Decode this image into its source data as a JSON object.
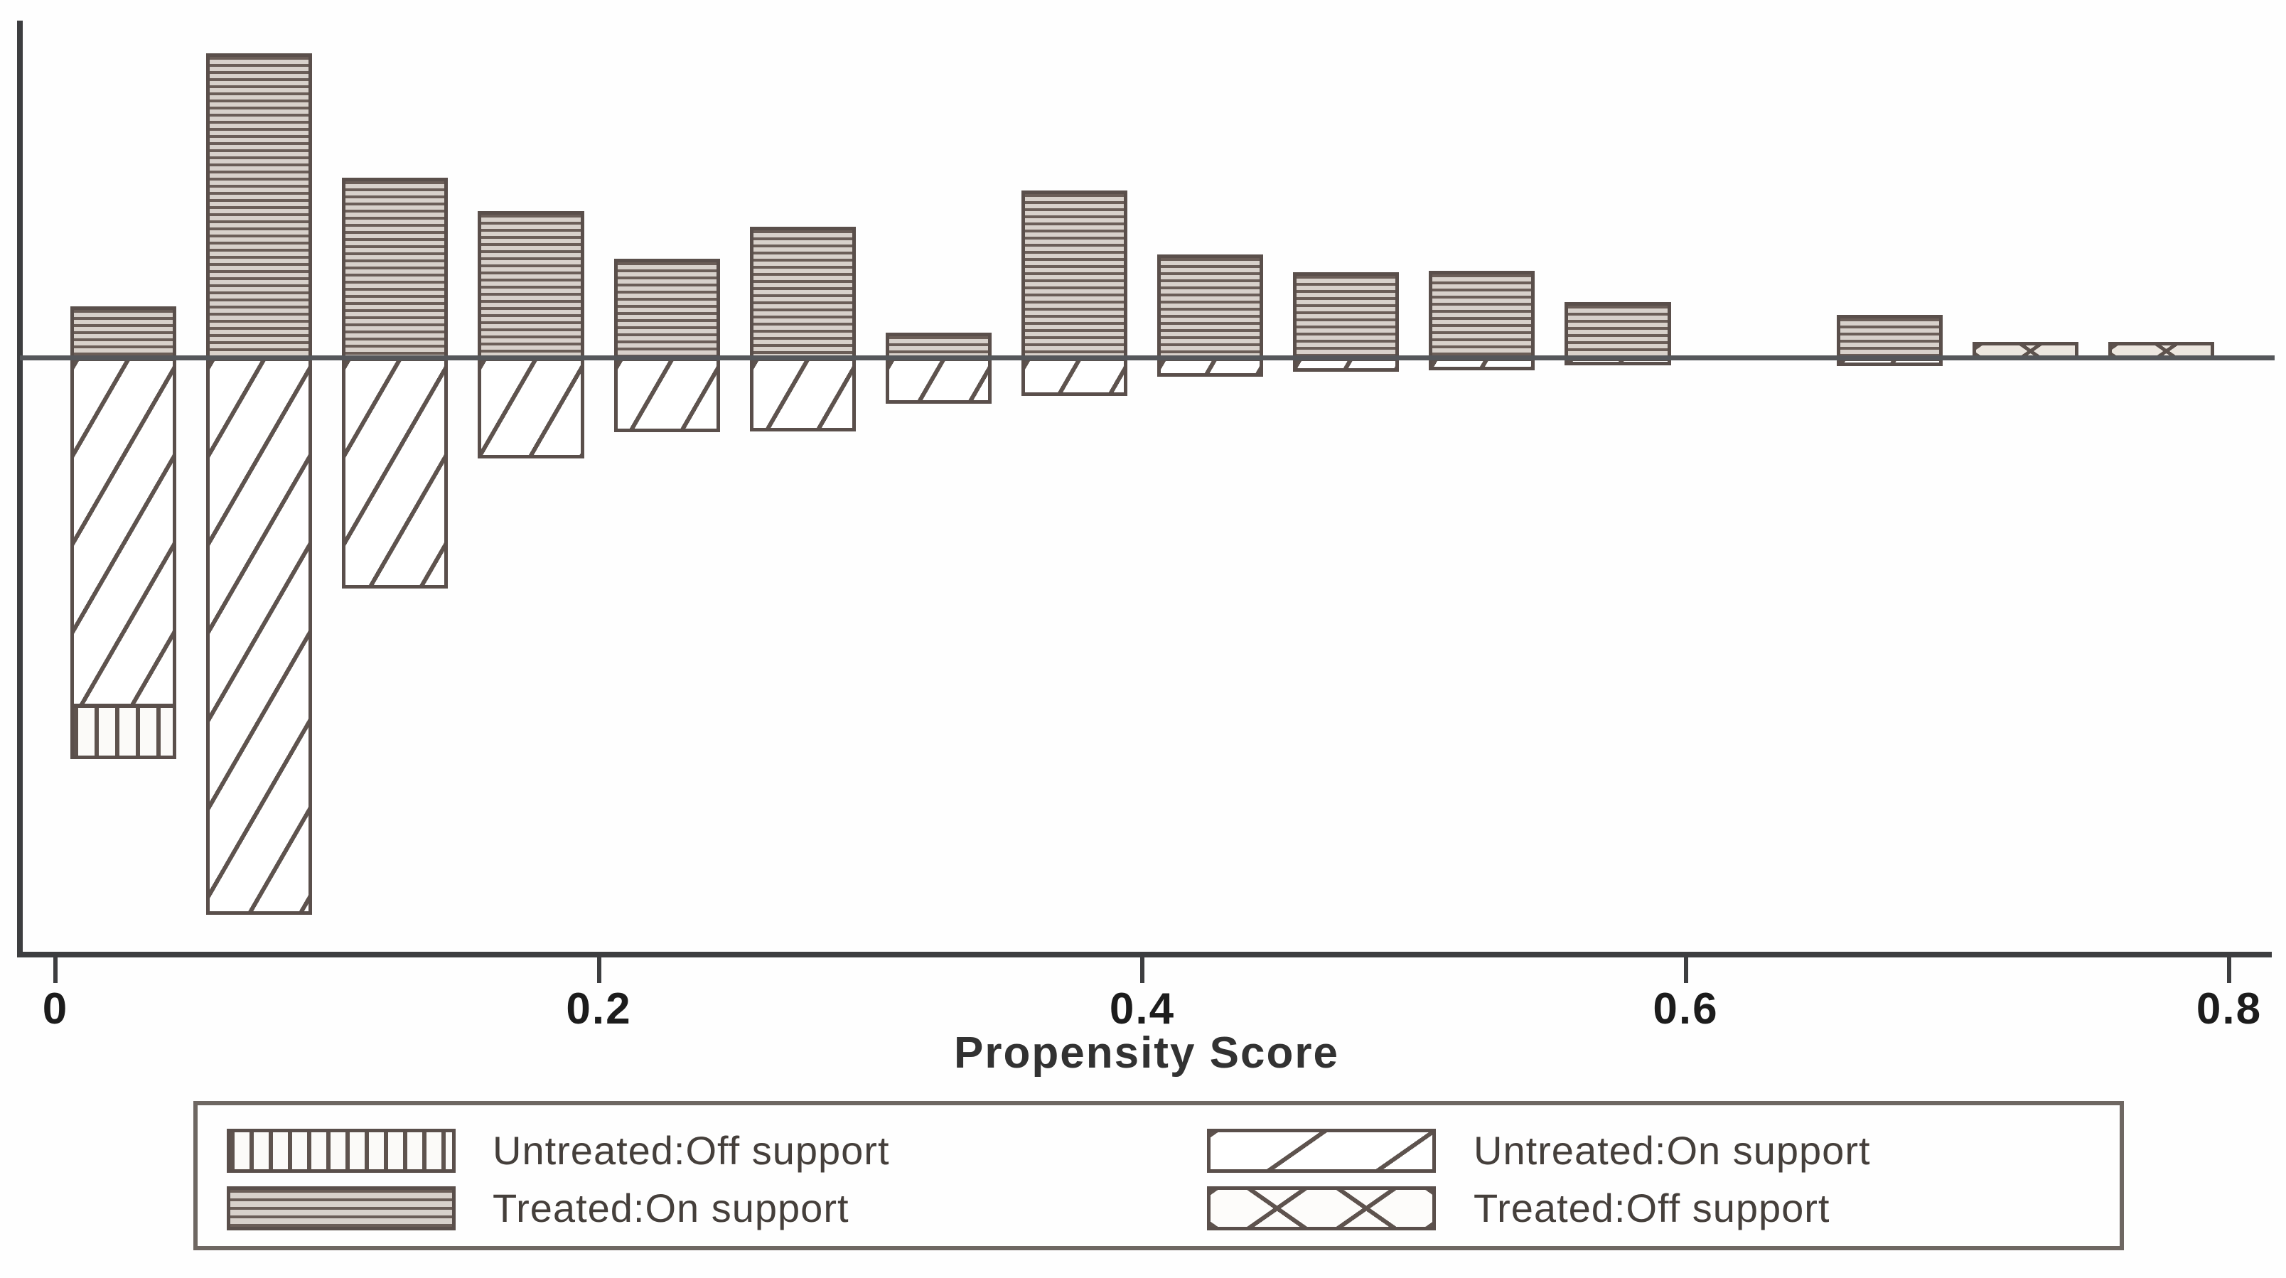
{
  "figure": {
    "background": "#fefefe",
    "axis_color": "#3d3e40",
    "zero_line_color": "#55575b",
    "bar_border_color": "#5a4f4b",
    "hatch_line_color": "#5e534e",
    "stripe_fill_color": "#d8d1cb",
    "text_color": "#1c1c1c"
  },
  "chart_data": {
    "type": "bar",
    "variant": "mirror-histogram-propensity-score-overlap",
    "title": "",
    "xlabel": "Propensity Score",
    "ylabel": "",
    "xlim": [
      0,
      0.8
    ],
    "bin_width": 0.05,
    "x_ticks": [
      {
        "value": 0.0,
        "label": "0"
      },
      {
        "value": 0.2,
        "label": "0.2"
      },
      {
        "value": 0.4,
        "label": "0.4"
      },
      {
        "value": 0.6,
        "label": "0.6"
      },
      {
        "value": 0.8,
        "label": "0.8"
      }
    ],
    "grid": false,
    "legend_position": "bottom",
    "units_note": "No y-axis scale is shown in the source figure; heights are relative frequencies in plot pixel units. Treated bars are drawn above the zero line, untreated bars below it.",
    "bins": [
      {
        "range": [
          0.0,
          0.05
        ],
        "treated_on": 72,
        "treated_off": 0,
        "untreated_on": 492,
        "untreated_off": 73
      },
      {
        "range": [
          0.05,
          0.1
        ],
        "treated_on": 428,
        "treated_off": 0,
        "untreated_on": 784,
        "untreated_off": 0
      },
      {
        "range": [
          0.1,
          0.15
        ],
        "treated_on": 253,
        "treated_off": 0,
        "untreated_on": 325,
        "untreated_off": 0
      },
      {
        "range": [
          0.15,
          0.2
        ],
        "treated_on": 206,
        "treated_off": 0,
        "untreated_on": 142,
        "untreated_off": 0
      },
      {
        "range": [
          0.2,
          0.25
        ],
        "treated_on": 139,
        "treated_off": 0,
        "untreated_on": 105,
        "untreated_off": 0
      },
      {
        "range": [
          0.25,
          0.3
        ],
        "treated_on": 184,
        "treated_off": 0,
        "untreated_on": 104,
        "untreated_off": 0
      },
      {
        "range": [
          0.3,
          0.35
        ],
        "treated_on": 35,
        "treated_off": 0,
        "untreated_on": 65,
        "untreated_off": 0
      },
      {
        "range": [
          0.35,
          0.4
        ],
        "treated_on": 235,
        "treated_off": 0,
        "untreated_on": 54,
        "untreated_off": 0
      },
      {
        "range": [
          0.4,
          0.45
        ],
        "treated_on": 145,
        "treated_off": 0,
        "untreated_on": 27,
        "untreated_off": 0
      },
      {
        "range": [
          0.45,
          0.5
        ],
        "treated_on": 120,
        "treated_off": 0,
        "untreated_on": 20,
        "untreated_off": 0
      },
      {
        "range": [
          0.5,
          0.55
        ],
        "treated_on": 122,
        "treated_off": 0,
        "untreated_on": 18,
        "untreated_off": 0
      },
      {
        "range": [
          0.55,
          0.6
        ],
        "treated_on": 78,
        "treated_off": 0,
        "untreated_on": 11,
        "untreated_off": 0
      },
      {
        "range": [
          0.6,
          0.65
        ],
        "treated_on": 0,
        "treated_off": 0,
        "untreated_on": 0,
        "untreated_off": 0
      },
      {
        "range": [
          0.65,
          0.7
        ],
        "treated_on": 60,
        "treated_off": 0,
        "untreated_on": 12,
        "untreated_off": 0
      },
      {
        "range": [
          0.7,
          0.75
        ],
        "treated_on": 0,
        "treated_off": 22,
        "untreated_on": 0,
        "untreated_off": 0
      },
      {
        "range": [
          0.75,
          0.8
        ],
        "treated_on": 0,
        "treated_off": 22,
        "untreated_on": 0,
        "untreated_off": 0
      }
    ],
    "legend": [
      {
        "label": "Untreated:Off support",
        "pattern": "vertical-lines",
        "side": "below-zero-line"
      },
      {
        "label": "Treated:On support",
        "pattern": "horizontal-lines",
        "side": "above-zero-line"
      },
      {
        "label": "Untreated:On support",
        "pattern": "diagonal-lines",
        "side": "below-zero-line"
      },
      {
        "label": "Treated:Off support",
        "pattern": "crosshatch",
        "side": "above-zero-line"
      }
    ]
  }
}
